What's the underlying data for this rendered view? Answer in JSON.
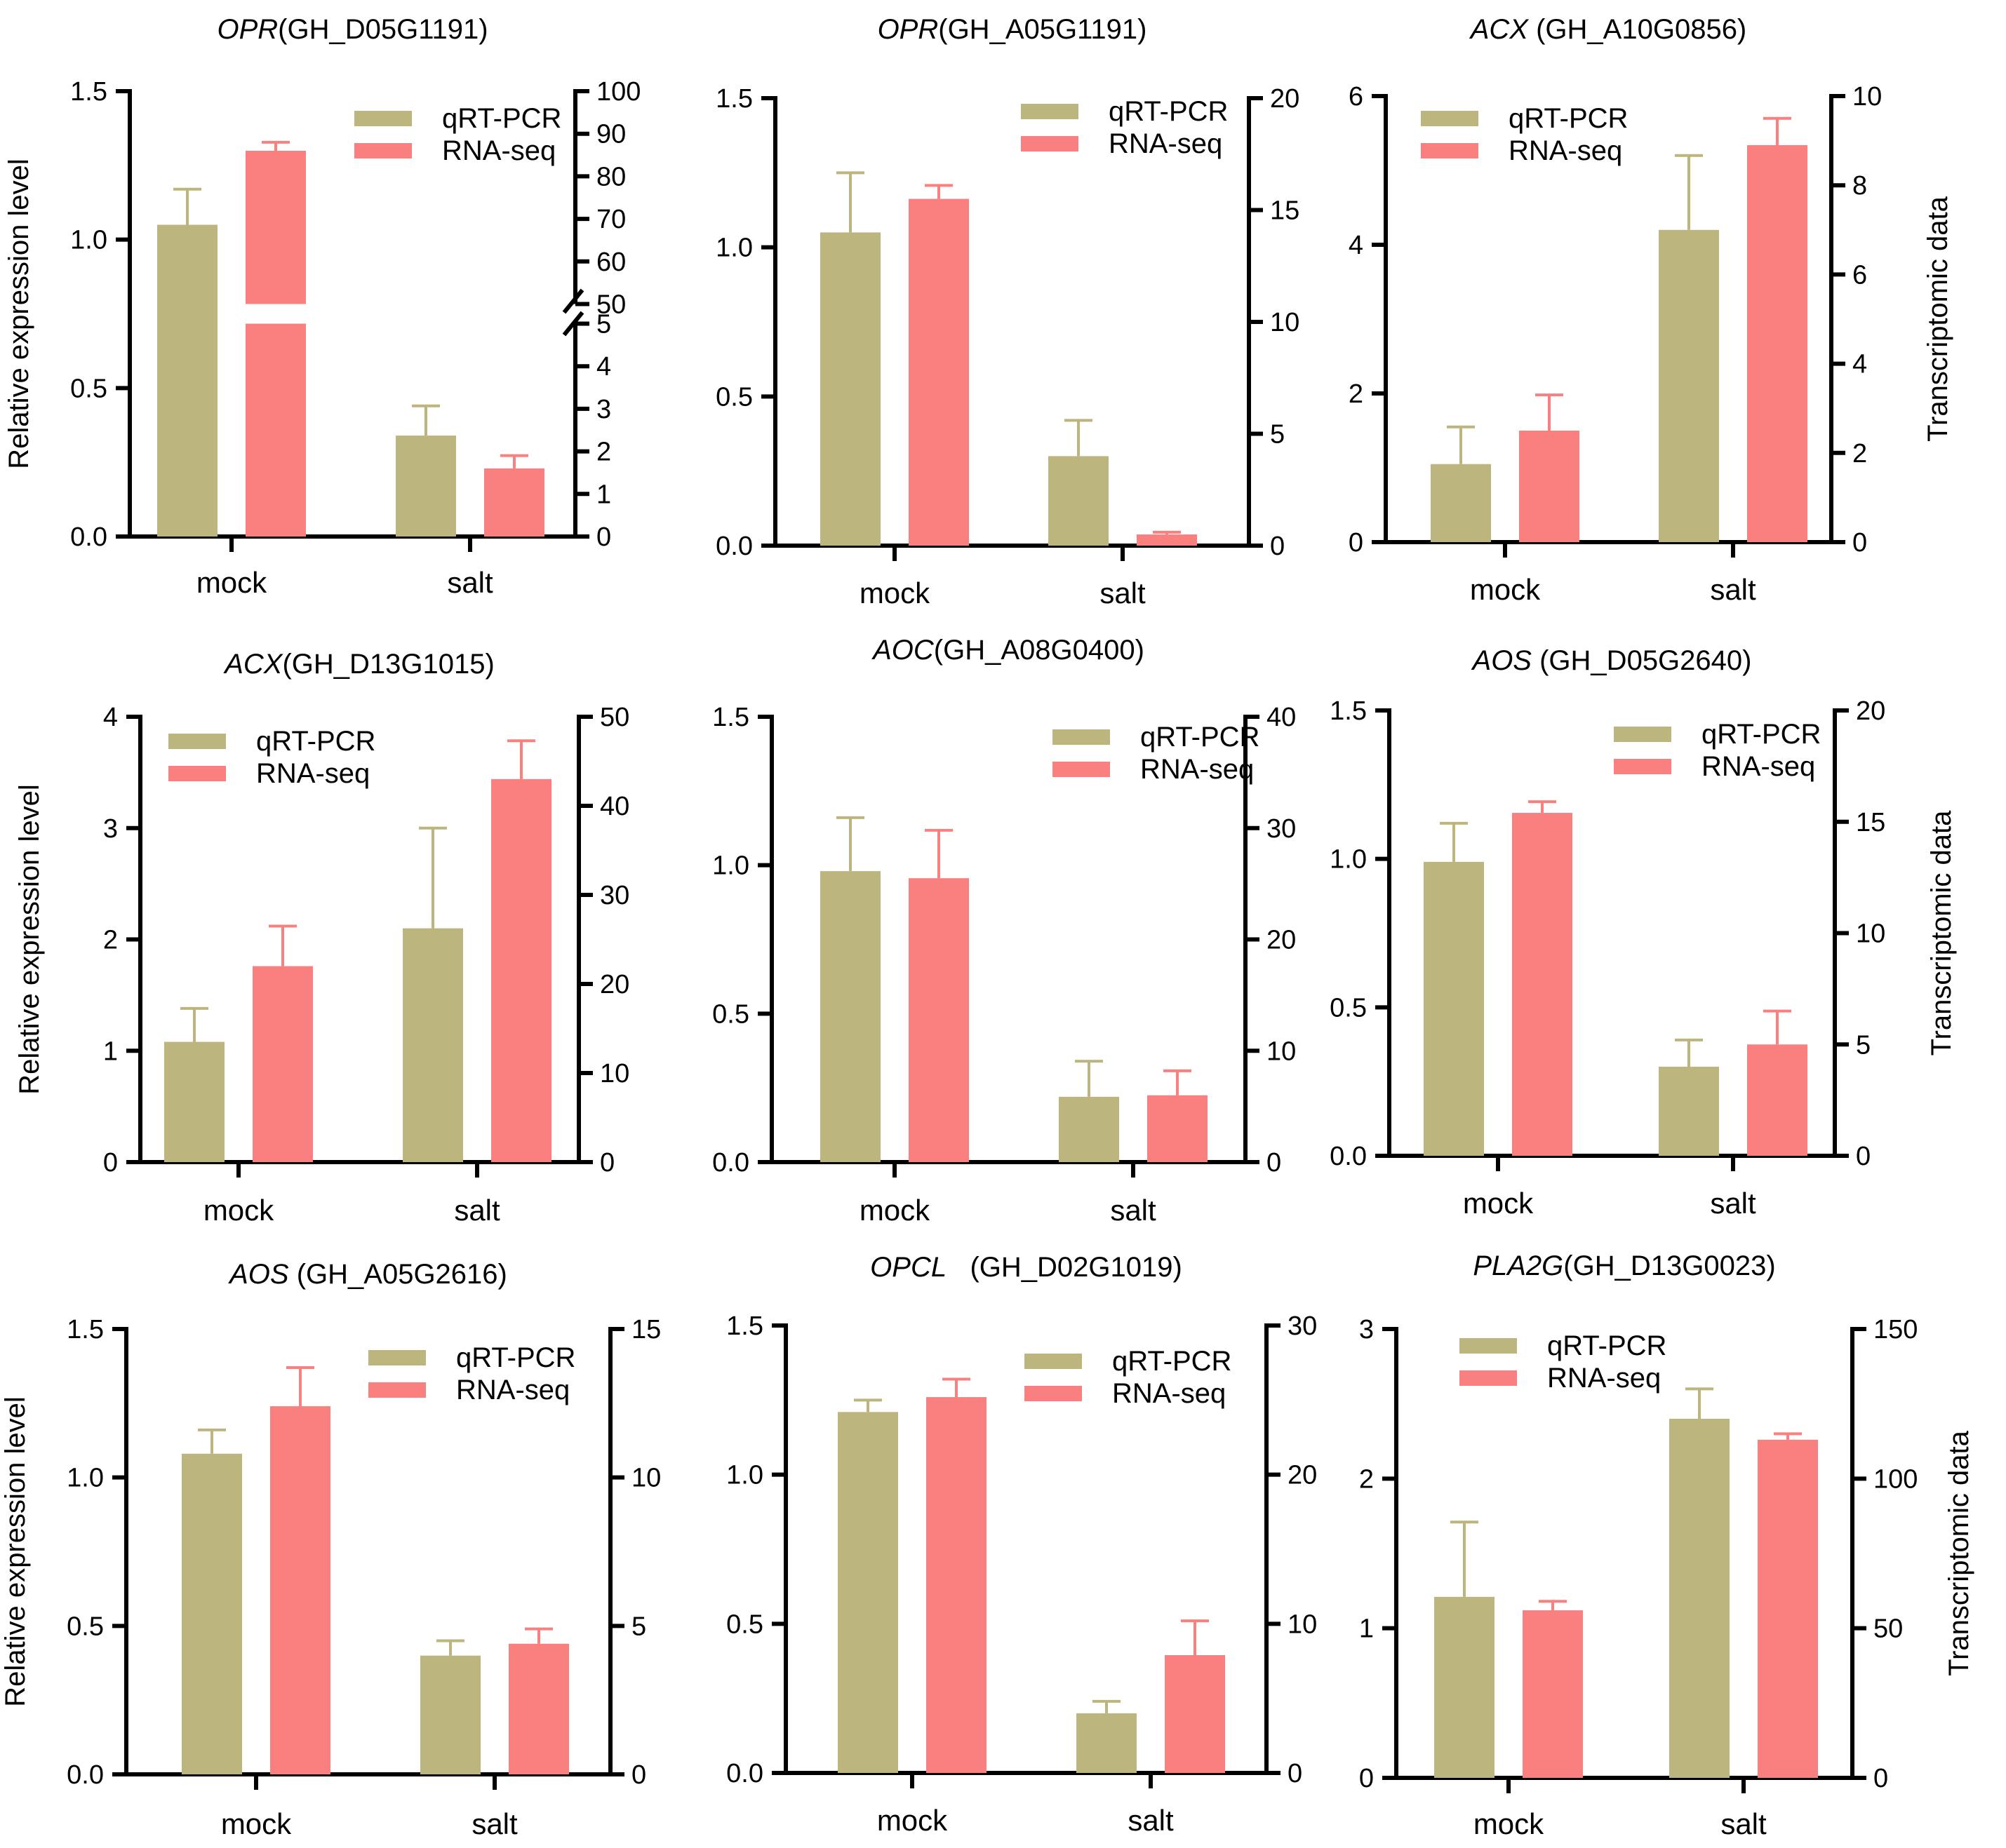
{
  "colors": {
    "qrt": "#bdb57e",
    "rna": "#fa8080",
    "err_qrt": "#bdb57e",
    "err_rna": "#fa8080",
    "axis": "#000000"
  },
  "chart_data": [
    {
      "type": "bar",
      "gene": "OPR",
      "id": "(GH_D05G1191)",
      "categories": [
        "mock",
        "salt"
      ],
      "series": [
        {
          "name": "qRT-PCR",
          "axis": "left",
          "values": [
            1.05,
            0.34
          ],
          "errors": [
            0.12,
            0.1
          ]
        },
        {
          "name": "RNA-seq",
          "axis": "right",
          "values": [
            86,
            1.6
          ],
          "errors": [
            2,
            0.3
          ]
        }
      ],
      "left": {
        "lim": [
          0,
          1.5
        ],
        "ticks": [
          "0.0",
          "0.5",
          "1.0",
          "1.5"
        ]
      },
      "right": {
        "broken": true,
        "lower_lim": [
          0,
          5
        ],
        "upper_lim": [
          50,
          100
        ],
        "lower_ticks": [
          "0",
          "1",
          "2",
          "3",
          "4",
          "5"
        ],
        "upper_ticks": [
          "50",
          "60",
          "70",
          "80",
          "90",
          "100"
        ]
      },
      "ylabel_left": "Relative expression level",
      "ylabel_right": ""
    },
    {
      "type": "bar",
      "gene": "OPR",
      "id": "(GH_A05G1191)",
      "categories": [
        "mock",
        "salt"
      ],
      "series": [
        {
          "name": "qRT-PCR",
          "axis": "left",
          "values": [
            1.05,
            0.3
          ],
          "errors": [
            0.2,
            0.12
          ]
        },
        {
          "name": "RNA-seq",
          "axis": "right",
          "values": [
            15.5,
            0.5
          ],
          "errors": [
            0.6,
            0.1
          ]
        }
      ],
      "left": {
        "lim": [
          0,
          1.5
        ],
        "ticks": [
          "0.0",
          "0.5",
          "1.0",
          "1.5"
        ]
      },
      "right": {
        "lim": [
          0,
          20
        ],
        "ticks": [
          "0",
          "5",
          "10",
          "15",
          "20"
        ]
      },
      "ylabel_left": "",
      "ylabel_right": ""
    },
    {
      "type": "bar",
      "gene": "ACX",
      "id": " (GH_A10G0856)",
      "categories": [
        "mock",
        "salt"
      ],
      "series": [
        {
          "name": "qRT-PCR",
          "axis": "left",
          "values": [
            1.05,
            4.2
          ],
          "errors": [
            0.5,
            1.0
          ]
        },
        {
          "name": "RNA-seq",
          "axis": "right",
          "values": [
            2.5,
            8.9
          ],
          "errors": [
            0.8,
            0.6
          ]
        }
      ],
      "left": {
        "lim": [
          0,
          6
        ],
        "ticks": [
          "0",
          "2",
          "4",
          "6"
        ]
      },
      "right": {
        "lim": [
          0,
          10
        ],
        "ticks": [
          "0",
          "2",
          "4",
          "6",
          "8",
          "10"
        ]
      },
      "ylabel_left": "",
      "ylabel_right": "Transcriptomic data"
    },
    {
      "type": "bar",
      "gene": "ACX",
      "id": "(GH_D13G1015)",
      "categories": [
        "mock",
        "salt"
      ],
      "series": [
        {
          "name": "qRT-PCR",
          "axis": "left",
          "values": [
            1.08,
            2.1
          ],
          "errors": [
            0.3,
            0.9
          ]
        },
        {
          "name": "RNA-seq",
          "axis": "right",
          "values": [
            22,
            43
          ],
          "errors": [
            4.5,
            4.3
          ]
        }
      ],
      "left": {
        "lim": [
          0,
          4
        ],
        "ticks": [
          "0",
          "1",
          "2",
          "3",
          "4"
        ]
      },
      "right": {
        "lim": [
          0,
          50
        ],
        "ticks": [
          "0",
          "10",
          "20",
          "30",
          "40",
          "50"
        ]
      },
      "ylabel_left": "Relative expression level",
      "ylabel_right": ""
    },
    {
      "type": "bar",
      "gene": "AOC",
      "id": "(GH_A08G0400)",
      "categories": [
        "mock",
        "salt"
      ],
      "series": [
        {
          "name": "qRT-PCR",
          "axis": "left",
          "values": [
            0.98,
            0.22
          ],
          "errors": [
            0.18,
            0.12
          ]
        },
        {
          "name": "RNA-seq",
          "axis": "right",
          "values": [
            25.5,
            6.0
          ],
          "errors": [
            4.3,
            2.2
          ]
        }
      ],
      "left": {
        "lim": [
          0,
          1.5
        ],
        "ticks": [
          "0.0",
          "0.5",
          "1.0",
          "1.5"
        ]
      },
      "right": {
        "lim": [
          0,
          40
        ],
        "ticks": [
          "0",
          "10",
          "20",
          "30",
          "40"
        ]
      },
      "ylabel_left": "",
      "ylabel_right": ""
    },
    {
      "type": "bar",
      "gene": "AOS",
      "id": " (GH_D05G2640)",
      "categories": [
        "mock",
        "salt"
      ],
      "series": [
        {
          "name": "qRT-PCR",
          "axis": "left",
          "values": [
            0.99,
            0.3
          ],
          "errors": [
            0.13,
            0.09
          ]
        },
        {
          "name": "RNA-seq",
          "axis": "right",
          "values": [
            15.4,
            5.0
          ],
          "errors": [
            0.5,
            1.5
          ]
        }
      ],
      "left": {
        "lim": [
          0,
          1.5
        ],
        "ticks": [
          "0.0",
          "0.5",
          "1.0",
          "1.5"
        ]
      },
      "right": {
        "lim": [
          0,
          20
        ],
        "ticks": [
          "0",
          "5",
          "10",
          "15",
          "20"
        ]
      },
      "ylabel_left": "",
      "ylabel_right": "Transcriptomic data"
    },
    {
      "type": "bar",
      "gene": "AOS",
      "id": " (GH_A05G2616)",
      "categories": [
        "mock",
        "salt"
      ],
      "series": [
        {
          "name": "qRT-PCR",
          "axis": "left",
          "values": [
            1.08,
            0.4
          ],
          "errors": [
            0.08,
            0.05
          ]
        },
        {
          "name": "RNA-seq",
          "axis": "right",
          "values": [
            12.4,
            4.4
          ],
          "errors": [
            1.3,
            0.5
          ]
        }
      ],
      "left": {
        "lim": [
          0,
          1.5
        ],
        "ticks": [
          "0.0",
          "0.5",
          "1.0",
          "1.5"
        ]
      },
      "right": {
        "lim": [
          0,
          15
        ],
        "ticks": [
          "0",
          "5",
          "10",
          "15"
        ]
      },
      "ylabel_left": "Relative expression level",
      "ylabel_right": ""
    },
    {
      "type": "bar",
      "gene": "OPCL",
      "id": "   (GH_D02G1019)",
      "categories": [
        "mock",
        "salt"
      ],
      "series": [
        {
          "name": "qRT-PCR",
          "axis": "left",
          "values": [
            1.21,
            0.2
          ],
          "errors": [
            0.04,
            0.04
          ]
        },
        {
          "name": "RNA-seq",
          "axis": "right",
          "values": [
            25.2,
            7.9
          ],
          "errors": [
            1.2,
            2.3
          ]
        }
      ],
      "left": {
        "lim": [
          0,
          1.5
        ],
        "ticks": [
          "0.0",
          "0.5",
          "1.0",
          "1.5"
        ]
      },
      "right": {
        "lim": [
          0,
          30
        ],
        "ticks": [
          "0",
          "10",
          "20",
          "30"
        ]
      },
      "ylabel_left": "",
      "ylabel_right": ""
    },
    {
      "type": "bar",
      "gene": "PLA2G",
      "id": "(GH_D13G0023)",
      "categories": [
        "mock",
        "salt"
      ],
      "series": [
        {
          "name": "qRT-PCR",
          "axis": "left",
          "values": [
            1.21,
            2.4
          ],
          "errors": [
            0.5,
            0.2
          ]
        },
        {
          "name": "RNA-seq",
          "axis": "right",
          "values": [
            56,
            113
          ],
          "errors": [
            3,
            2
          ]
        }
      ],
      "left": {
        "lim": [
          0,
          3
        ],
        "ticks": [
          "0",
          "1",
          "2",
          "3"
        ]
      },
      "right": {
        "lim": [
          0,
          150
        ],
        "ticks": [
          "0",
          "50",
          "100",
          "150"
        ]
      },
      "ylabel_left": "",
      "ylabel_right": "Transcriptomic data"
    }
  ]
}
